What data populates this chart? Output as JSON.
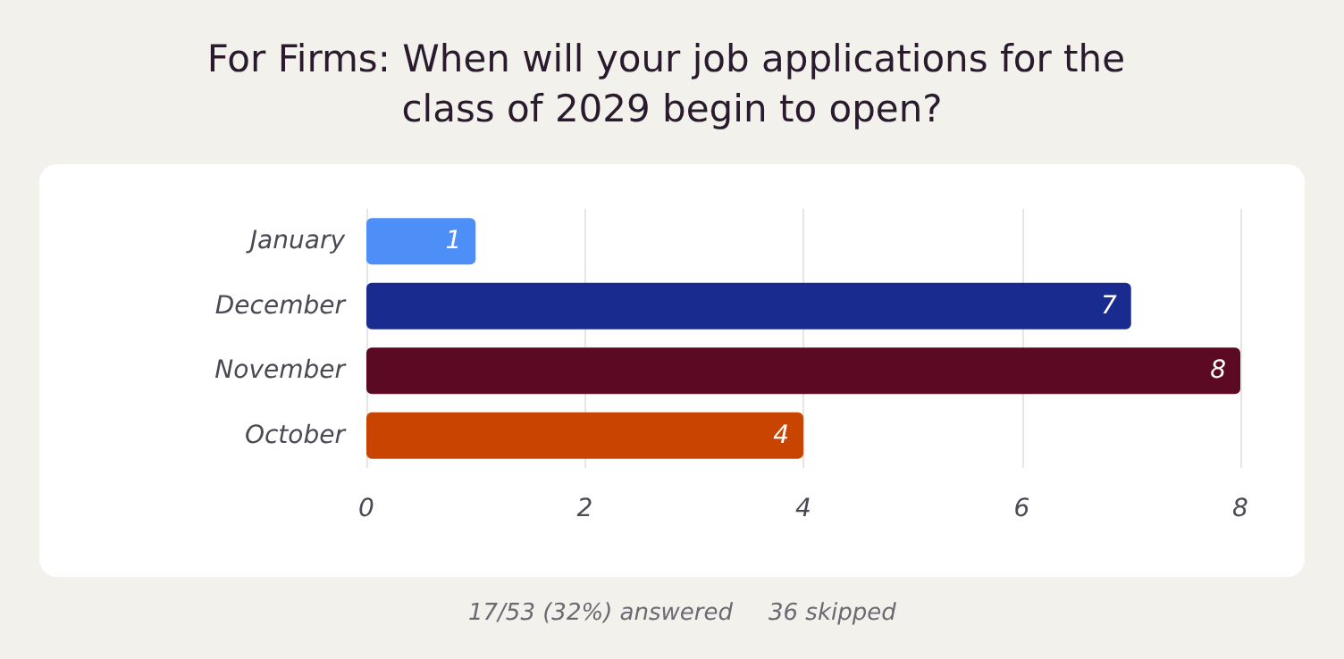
{
  "chart_data": {
    "type": "bar",
    "orientation": "horizontal",
    "title": "For Firms: When will your job applications for the class of 2029 begin to open?",
    "categories": [
      "January",
      "December",
      "November",
      "October"
    ],
    "values": [
      1,
      7,
      8,
      4
    ],
    "colors": [
      "#4d8ef7",
      "#1a2b8f",
      "#5c0a24",
      "#c94400"
    ],
    "xlim": [
      0,
      8
    ],
    "xticks": [
      0,
      2,
      4,
      6,
      8
    ],
    "grid": "x",
    "data_labels": true,
    "annotations": [
      "17/53 (32%) answered",
      "36 skipped"
    ]
  }
}
